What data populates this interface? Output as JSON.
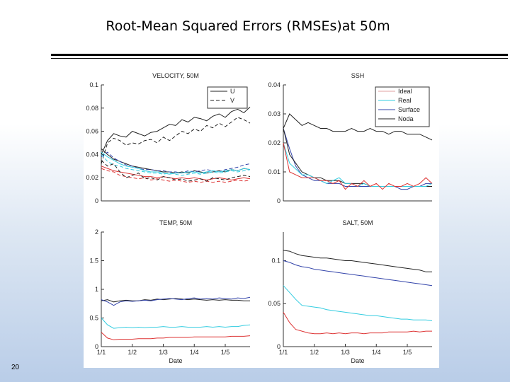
{
  "slide": {
    "title": "Root-Mean Squared Errors (RMSEs)at 50m",
    "number": "20"
  },
  "chart_data": [
    {
      "type": "line",
      "title": "VELOCITY, 50M",
      "x": [
        1,
        2,
        3,
        4,
        5,
        6,
        7,
        8,
        9,
        10,
        11,
        12,
        13,
        14,
        15,
        16,
        17,
        18,
        19,
        20,
        21,
        22,
        23,
        24,
        25
      ],
      "ylim": [
        0,
        0.1
      ],
      "yticks": [
        0,
        0.02,
        0.04,
        0.06,
        0.08,
        0.1
      ],
      "ytick_labels": [
        "0",
        "0.02",
        "0.04",
        "0.06",
        "0.08",
        "0.1"
      ],
      "xticks": [],
      "xtick_labels": [],
      "xlabel": "",
      "legend": [
        "U",
        "V"
      ],
      "legend_styles": [
        "solid",
        "dashed"
      ],
      "legend_position": "top-right",
      "series": [
        {
          "color": "#222222",
          "dash": "solid",
          "values": [
            0.04,
            0.052,
            0.058,
            0.056,
            0.055,
            0.06,
            0.058,
            0.056,
            0.059,
            0.06,
            0.063,
            0.066,
            0.065,
            0.07,
            0.068,
            0.072,
            0.071,
            0.069,
            0.073,
            0.075,
            0.072,
            0.077,
            0.079,
            0.076,
            0.081
          ]
        },
        {
          "color": "#222222",
          "dash": "dashed",
          "values": [
            0.032,
            0.05,
            0.054,
            0.052,
            0.048,
            0.05,
            0.049,
            0.052,
            0.053,
            0.05,
            0.055,
            0.052,
            0.056,
            0.06,
            0.058,
            0.062,
            0.06,
            0.065,
            0.063,
            0.067,
            0.064,
            0.068,
            0.072,
            0.07,
            0.067
          ]
        },
        {
          "color": "#222222",
          "dash": "solid",
          "values": [
            0.045,
            0.04,
            0.036,
            0.034,
            0.032,
            0.03,
            0.029,
            0.028,
            0.027,
            0.026,
            0.025,
            0.025,
            0.024,
            0.025,
            0.024,
            0.026,
            0.025,
            0.024,
            0.025,
            0.026,
            0.025,
            0.027,
            0.026,
            0.028,
            0.027
          ]
        },
        {
          "color": "#3344aa",
          "dash": "dashed",
          "values": [
            0.038,
            0.042,
            0.037,
            0.034,
            0.031,
            0.03,
            0.028,
            0.027,
            0.027,
            0.026,
            0.026,
            0.025,
            0.025,
            0.024,
            0.026,
            0.025,
            0.026,
            0.027,
            0.026,
            0.025,
            0.027,
            0.028,
            0.029,
            0.031,
            0.032
          ]
        },
        {
          "color": "#33cce0",
          "dash": "solid",
          "values": [
            0.042,
            0.038,
            0.035,
            0.032,
            0.03,
            0.029,
            0.028,
            0.026,
            0.025,
            0.025,
            0.024,
            0.023,
            0.024,
            0.024,
            0.025,
            0.025,
            0.024,
            0.025,
            0.026,
            0.025,
            0.026,
            0.027,
            0.026,
            0.028,
            0.027
          ]
        },
        {
          "color": "#33cce0",
          "dash": "dashed",
          "values": [
            0.04,
            0.034,
            0.031,
            0.03,
            0.028,
            0.027,
            0.026,
            0.025,
            0.024,
            0.024,
            0.023,
            0.024,
            0.023,
            0.022,
            0.023,
            0.024,
            0.023,
            0.024,
            0.025,
            0.024,
            0.025,
            0.026,
            0.025,
            0.026,
            0.027
          ]
        },
        {
          "color": "#dd3333",
          "dash": "solid",
          "values": [
            0.03,
            0.028,
            0.026,
            0.025,
            0.024,
            0.023,
            0.022,
            0.021,
            0.021,
            0.02,
            0.021,
            0.02,
            0.019,
            0.02,
            0.019,
            0.02,
            0.019,
            0.018,
            0.019,
            0.02,
            0.019,
            0.018,
            0.019,
            0.02,
            0.019
          ]
        },
        {
          "color": "#dd3333",
          "dash": "dashed",
          "values": [
            0.028,
            0.026,
            0.025,
            0.022,
            0.021,
            0.02,
            0.019,
            0.02,
            0.018,
            0.019,
            0.018,
            0.017,
            0.018,
            0.017,
            0.016,
            0.017,
            0.016,
            0.017,
            0.016,
            0.017,
            0.016,
            0.017,
            0.018,
            0.017,
            0.018
          ]
        },
        {
          "color": "#222222",
          "dash": "dashed",
          "values": [
            0.035,
            0.03,
            0.032,
            0.025,
            0.02,
            0.022,
            0.024,
            0.019,
            0.02,
            0.018,
            0.021,
            0.02,
            0.018,
            0.019,
            0.017,
            0.018,
            0.019,
            0.017,
            0.02,
            0.019,
            0.018,
            0.02,
            0.021,
            0.022,
            0.021
          ]
        }
      ]
    },
    {
      "type": "line",
      "title": "SSH",
      "x": [
        1,
        2,
        3,
        4,
        5,
        6,
        7,
        8,
        9,
        10,
        11,
        12,
        13,
        14,
        15,
        16,
        17,
        18,
        19,
        20,
        21,
        22,
        23,
        24,
        25
      ],
      "ylim": [
        0,
        0.04
      ],
      "yticks": [
        0,
        0.01,
        0.02,
        0.03,
        0.04
      ],
      "ytick_labels": [
        "0",
        "0.01",
        "0.02",
        "0.03",
        "0.04"
      ],
      "xticks": [],
      "xtick_labels": [],
      "xlabel": "",
      "legend": [
        "Ideal",
        "Real",
        "Surface",
        "Noda"
      ],
      "legend_colors": [
        "#e0a0a0",
        "#33cce0",
        "#3344aa",
        "#222222"
      ],
      "legend_position": "top-right",
      "series": [
        {
          "color": "#222222",
          "dash": "solid",
          "values": [
            0.025,
            0.03,
            0.028,
            0.026,
            0.027,
            0.026,
            0.025,
            0.025,
            0.024,
            0.024,
            0.024,
            0.025,
            0.024,
            0.024,
            0.025,
            0.024,
            0.024,
            0.023,
            0.024,
            0.024,
            0.023,
            0.023,
            0.023,
            0.022,
            0.021
          ]
        },
        {
          "color": "#3344aa",
          "dash": "solid",
          "values": [
            0.025,
            0.018,
            0.012,
            0.009,
            0.008,
            0.007,
            0.007,
            0.006,
            0.006,
            0.006,
            0.005,
            0.005,
            0.005,
            0.005,
            0.005,
            0.005,
            0.005,
            0.005,
            0.005,
            0.004,
            0.004,
            0.005,
            0.005,
            0.006,
            0.006
          ]
        },
        {
          "color": "#222222",
          "dash": "solid",
          "values": [
            0.025,
            0.016,
            0.013,
            0.01,
            0.009,
            0.008,
            0.008,
            0.007,
            0.007,
            0.007,
            0.006,
            0.006,
            0.006,
            0.006,
            0.005,
            0.005,
            0.005,
            0.005,
            0.005,
            0.005,
            0.005,
            0.005,
            0.005,
            0.005,
            0.005
          ]
        },
        {
          "color": "#33cce0",
          "dash": "solid",
          "values": [
            0.02,
            0.013,
            0.011,
            0.009,
            0.009,
            0.008,
            0.007,
            0.006,
            0.007,
            0.008,
            0.006,
            0.006,
            0.005,
            0.006,
            0.005,
            0.005,
            0.005,
            0.005,
            0.005,
            0.005,
            0.005,
            0.005,
            0.005,
            0.005,
            0.006
          ]
        },
        {
          "color": "#dd3333",
          "dash": "solid",
          "values": [
            0.02,
            0.01,
            0.009,
            0.008,
            0.008,
            0.008,
            0.007,
            0.007,
            0.006,
            0.007,
            0.004,
            0.006,
            0.005,
            0.007,
            0.005,
            0.006,
            0.004,
            0.006,
            0.005,
            0.005,
            0.006,
            0.005,
            0.006,
            0.008,
            0.006
          ]
        }
      ]
    },
    {
      "type": "line",
      "title": "TEMP, 50M",
      "x": [
        1,
        2,
        3,
        4,
        5,
        6,
        7,
        8,
        9,
        10,
        11,
        12,
        13,
        14,
        15,
        16,
        17,
        18,
        19,
        20,
        21,
        22,
        23,
        24,
        25
      ],
      "ylim": [
        0,
        2
      ],
      "yticks": [
        0,
        0.5,
        1,
        1.5,
        2
      ],
      "ytick_labels": [
        "0",
        "0.5",
        "1",
        "1.5",
        "2"
      ],
      "xticks": [
        1,
        6,
        11,
        16,
        21
      ],
      "xtick_labels": [
        "1/1",
        "1/2",
        "1/3",
        "1/4",
        "1/5"
      ],
      "xlabel": "Date",
      "series": [
        {
          "color": "#222222",
          "dash": "solid",
          "values": [
            0.8,
            0.82,
            0.78,
            0.8,
            0.81,
            0.8,
            0.8,
            0.82,
            0.81,
            0.83,
            0.82,
            0.83,
            0.84,
            0.83,
            0.82,
            0.83,
            0.82,
            0.81,
            0.82,
            0.81,
            0.82,
            0.81,
            0.81,
            0.8,
            0.8
          ]
        },
        {
          "color": "#3344aa",
          "dash": "solid",
          "values": [
            0.82,
            0.78,
            0.72,
            0.78,
            0.8,
            0.79,
            0.8,
            0.81,
            0.8,
            0.82,
            0.83,
            0.84,
            0.83,
            0.82,
            0.84,
            0.85,
            0.83,
            0.84,
            0.83,
            0.85,
            0.84,
            0.83,
            0.85,
            0.84,
            0.86
          ]
        },
        {
          "color": "#33cce0",
          "dash": "solid",
          "values": [
            0.5,
            0.38,
            0.32,
            0.33,
            0.34,
            0.33,
            0.34,
            0.33,
            0.34,
            0.34,
            0.35,
            0.34,
            0.34,
            0.35,
            0.34,
            0.34,
            0.34,
            0.35,
            0.34,
            0.35,
            0.34,
            0.35,
            0.35,
            0.37,
            0.38
          ]
        },
        {
          "color": "#dd3333",
          "dash": "solid",
          "values": [
            0.25,
            0.15,
            0.12,
            0.13,
            0.13,
            0.13,
            0.14,
            0.14,
            0.14,
            0.15,
            0.15,
            0.16,
            0.16,
            0.16,
            0.16,
            0.17,
            0.17,
            0.17,
            0.17,
            0.17,
            0.17,
            0.18,
            0.18,
            0.18,
            0.19
          ]
        }
      ]
    },
    {
      "type": "line",
      "title": "SALT, 50M",
      "x": [
        1,
        2,
        3,
        4,
        5,
        6,
        7,
        8,
        9,
        10,
        11,
        12,
        13,
        14,
        15,
        16,
        17,
        18,
        19,
        20,
        21,
        22,
        23,
        24,
        25
      ],
      "ylim": [
        0,
        0.1333
      ],
      "yticks": [
        0,
        0.05,
        0.1
      ],
      "ytick_labels": [
        "0",
        "0.05",
        "0.1"
      ],
      "xticks": [
        1,
        6,
        11,
        16,
        21
      ],
      "xtick_labels": [
        "1/1",
        "1/2",
        "1/3",
        "1/4",
        "1/5"
      ],
      "xlabel": "Date",
      "series": [
        {
          "color": "#222222",
          "dash": "solid",
          "values": [
            0.112,
            0.111,
            0.108,
            0.106,
            0.105,
            0.104,
            0.103,
            0.103,
            0.102,
            0.101,
            0.1,
            0.1,
            0.099,
            0.098,
            0.097,
            0.096,
            0.095,
            0.094,
            0.093,
            0.092,
            0.091,
            0.09,
            0.089,
            0.087,
            0.087
          ]
        },
        {
          "color": "#3344aa",
          "dash": "solid",
          "values": [
            0.1,
            0.098,
            0.095,
            0.093,
            0.092,
            0.09,
            0.089,
            0.088,
            0.087,
            0.086,
            0.085,
            0.084,
            0.083,
            0.082,
            0.081,
            0.08,
            0.079,
            0.078,
            0.077,
            0.076,
            0.075,
            0.074,
            0.073,
            0.072,
            0.071
          ]
        },
        {
          "color": "#33cce0",
          "dash": "solid",
          "values": [
            0.071,
            0.063,
            0.055,
            0.048,
            0.047,
            0.046,
            0.045,
            0.043,
            0.042,
            0.041,
            0.04,
            0.039,
            0.038,
            0.037,
            0.036,
            0.036,
            0.035,
            0.034,
            0.033,
            0.032,
            0.032,
            0.031,
            0.031,
            0.031,
            0.03
          ]
        },
        {
          "color": "#dd3333",
          "dash": "solid",
          "values": [
            0.04,
            0.028,
            0.02,
            0.018,
            0.016,
            0.015,
            0.015,
            0.016,
            0.015,
            0.016,
            0.015,
            0.016,
            0.016,
            0.015,
            0.016,
            0.016,
            0.016,
            0.017,
            0.017,
            0.017,
            0.017,
            0.018,
            0.017,
            0.018,
            0.018
          ]
        }
      ]
    }
  ]
}
